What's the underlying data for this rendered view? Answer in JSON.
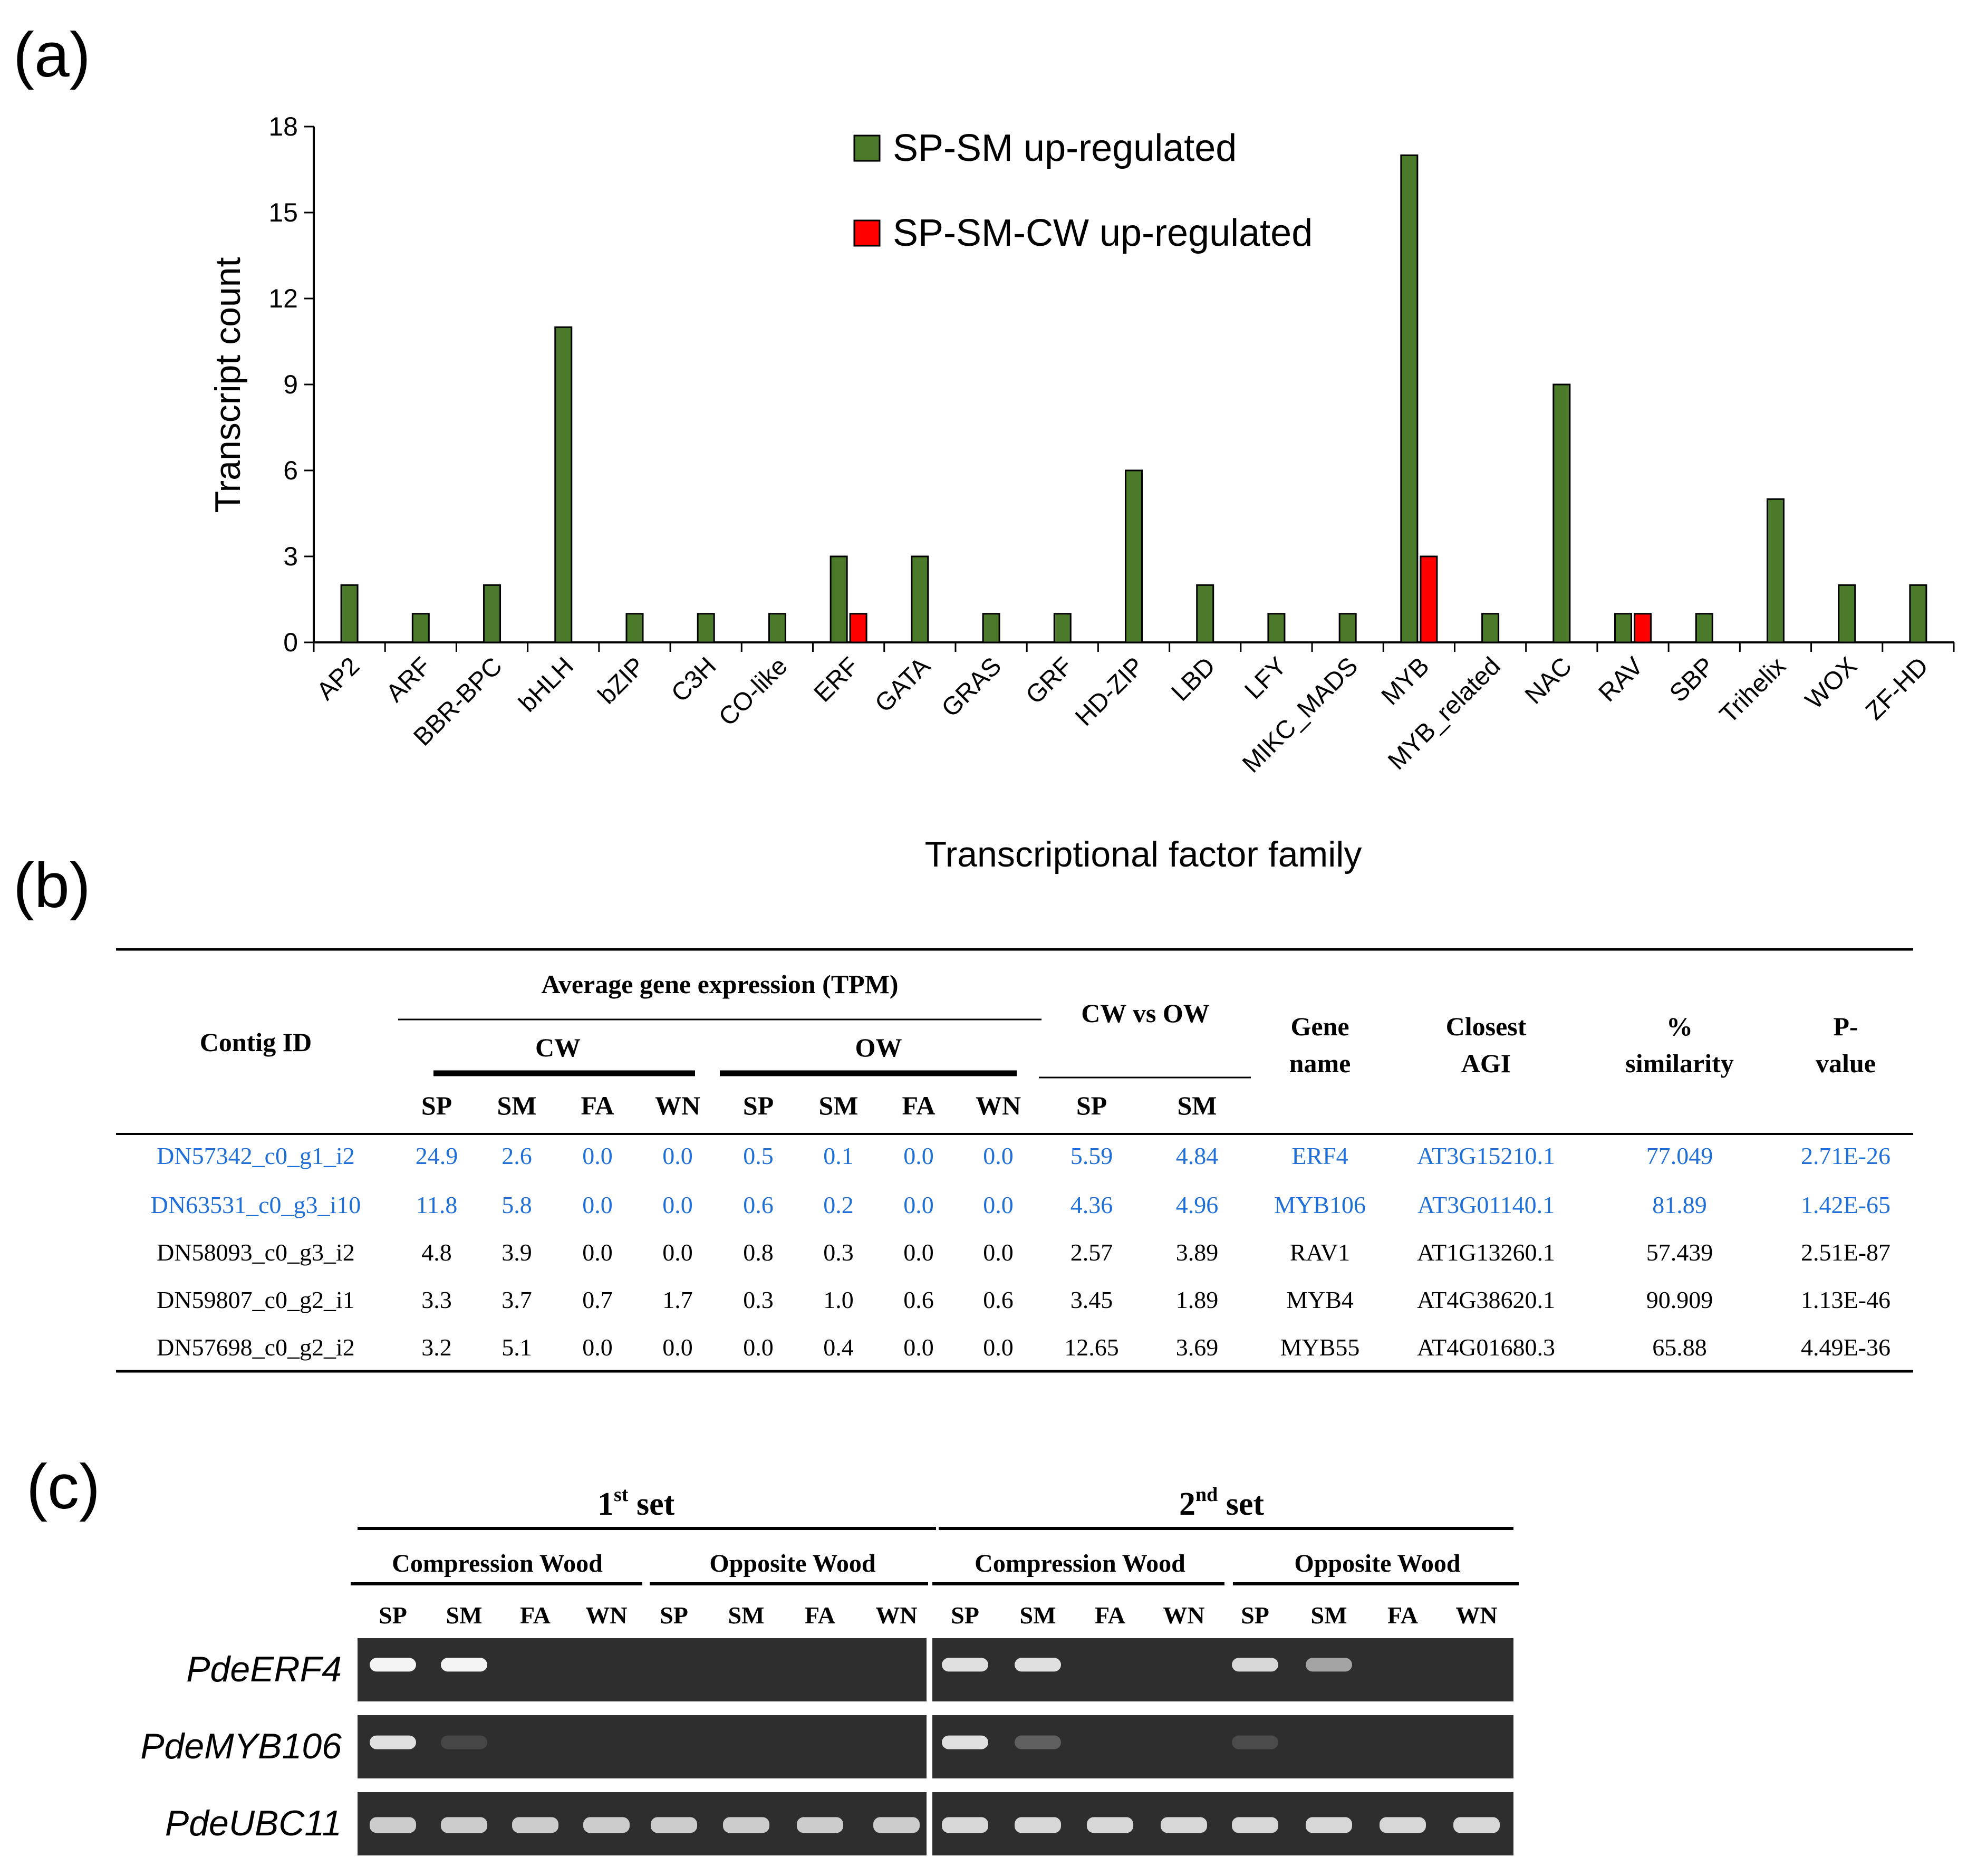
{
  "panels": {
    "a": "(a)",
    "b": "(b)",
    "c": "(c)"
  },
  "colors": {
    "up": "#4a7a2a",
    "cw": "#ff0000",
    "highlight": "#1f6fd6",
    "gel_bg": "#2e2e2e"
  },
  "chart_data": {
    "type": "bar",
    "title": "",
    "xlabel": "Transcriptional factor family",
    "ylabel": "Transcript count",
    "ylim": [
      0,
      18
    ],
    "yticks": [
      0,
      3,
      6,
      9,
      12,
      15,
      18
    ],
    "legend_position": "top-center",
    "categories": [
      "AP2",
      "ARF",
      "BBR-BPC",
      "bHLH",
      "bZIP",
      "C3H",
      "CO-like",
      "ERF",
      "GATA",
      "GRAS",
      "GRF",
      "HD-ZIP",
      "LBD",
      "LFY",
      "MIKC_MADS",
      "MYB",
      "MYB_related",
      "NAC",
      "RAV",
      "SBP",
      "Trihelix",
      "WOX",
      "ZF-HD"
    ],
    "series": [
      {
        "name": "SP-SM up-regulated",
        "color": "#4a7a2a",
        "values": [
          2,
          1,
          2,
          11,
          1,
          1,
          1,
          3,
          3,
          1,
          1,
          6,
          2,
          1,
          1,
          17,
          1,
          9,
          1,
          1,
          5,
          2,
          2
        ]
      },
      {
        "name": "SP-SM-CW up-regulated",
        "color": "#ff0000",
        "values": [
          0,
          0,
          0,
          0,
          0,
          0,
          0,
          1,
          0,
          0,
          0,
          0,
          0,
          0,
          0,
          3,
          0,
          0,
          1,
          0,
          0,
          0,
          0
        ]
      }
    ]
  },
  "table": {
    "headers": {
      "contig": "Contig ID",
      "avg": "Average gene expression (TPM)",
      "cw": "CW",
      "ow": "OW",
      "cwvsow": "CW vs OW",
      "gene1": "Gene",
      "gene2": "name",
      "agi1": "Closest",
      "agi2": "AGI",
      "sim1": "%",
      "sim2": "similarity",
      "p1": "P-",
      "p2": "value",
      "sub": [
        "SP",
        "SM",
        "FA",
        "WN",
        "SP",
        "SM",
        "FA",
        "WN",
        "SP",
        "SM"
      ]
    },
    "rows": [
      {
        "highlight": true,
        "cells": [
          "DN57342_c0_g1_i2",
          "24.9",
          "2.6",
          "0.0",
          "0.0",
          "0.5",
          "0.1",
          "0.0",
          "0.0",
          "5.59",
          "4.84",
          "ERF4",
          "AT3G15210.1",
          "77.049",
          "2.71E-26"
        ]
      },
      {
        "highlight": true,
        "cells": [
          "DN63531_c0_g3_i10",
          "11.8",
          "5.8",
          "0.0",
          "0.0",
          "0.6",
          "0.2",
          "0.0",
          "0.0",
          "4.36",
          "4.96",
          "MYB106",
          "AT3G01140.1",
          "81.89",
          "1.42E-65"
        ]
      },
      {
        "highlight": false,
        "cells": [
          "DN58093_c0_g3_i2",
          "4.8",
          "3.9",
          "0.0",
          "0.0",
          "0.8",
          "0.3",
          "0.0",
          "0.0",
          "2.57",
          "3.89",
          "RAV1",
          "AT1G13260.1",
          "57.439",
          "2.51E-87"
        ]
      },
      {
        "highlight": false,
        "cells": [
          "DN59807_c0_g2_i1",
          "3.3",
          "3.7",
          "0.7",
          "1.7",
          "0.3",
          "1.0",
          "0.6",
          "0.6",
          "3.45",
          "1.89",
          "MYB4",
          "AT4G38620.1",
          "90.909",
          "1.13E-46"
        ]
      },
      {
        "highlight": false,
        "cells": [
          "DN57698_c0_g2_i2",
          "3.2",
          "5.1",
          "0.0",
          "0.0",
          "0.0",
          "0.4",
          "0.0",
          "0.0",
          "12.65",
          "3.69",
          "MYB55",
          "AT4G01680.3",
          "65.88",
          "4.49E-36"
        ]
      }
    ]
  },
  "gel": {
    "sets": [
      {
        "num": "1",
        "sup": "st",
        "label": " set"
      },
      {
        "num": "2",
        "sup": "nd",
        "label": " set"
      }
    ],
    "groups": [
      "Compression Wood",
      "Opposite Wood"
    ],
    "lanes": [
      "SP",
      "SM",
      "FA",
      "WN"
    ],
    "genes": [
      "PdeERF4",
      "PdeMYB106",
      "PdeUBC11"
    ]
  }
}
